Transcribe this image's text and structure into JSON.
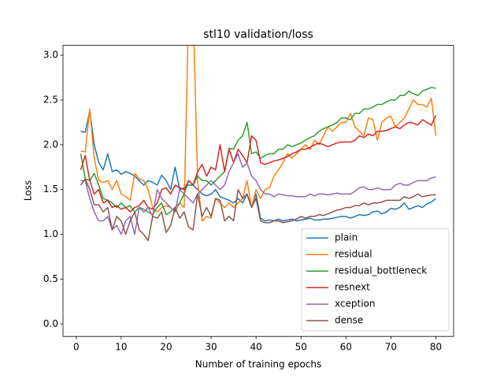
{
  "chart_data": {
    "type": "line",
    "title": "stl10 validation/loss",
    "xlabel": "Number of training epochs",
    "ylabel": "Loss",
    "x": [
      1,
      2,
      3,
      4,
      5,
      6,
      7,
      8,
      9,
      10,
      11,
      12,
      13,
      14,
      15,
      16,
      17,
      18,
      19,
      20,
      21,
      22,
      23,
      24,
      25,
      26,
      27,
      28,
      29,
      30,
      31,
      32,
      33,
      34,
      35,
      36,
      37,
      38,
      39,
      40,
      41,
      42,
      43,
      44,
      45,
      46,
      47,
      48,
      49,
      50,
      51,
      52,
      53,
      54,
      55,
      56,
      57,
      58,
      59,
      60,
      61,
      62,
      63,
      64,
      65,
      66,
      67,
      68,
      69,
      70,
      71,
      72,
      73,
      74,
      75,
      76,
      77,
      78,
      79,
      80
    ],
    "xlim": [
      -2.95,
      83.95
    ],
    "ylim": [
      -0.14,
      3.11
    ],
    "xticks": [
      0,
      10,
      20,
      30,
      40,
      50,
      60,
      70,
      80
    ],
    "yticks": [
      {
        "value": 0,
        "label": "0.0"
      },
      {
        "value": 0.5,
        "label": "0.5"
      },
      {
        "value": 1,
        "label": "1.0"
      },
      {
        "value": 1.5,
        "label": "1.5"
      },
      {
        "value": 2,
        "label": "2.0"
      },
      {
        "value": 2.5,
        "label": "2.5"
      },
      {
        "value": 3,
        "label": "3.0"
      }
    ],
    "legend": "lower right",
    "series": [
      {
        "name": "plain",
        "color": "#1f77b4",
        "values": [
          2.15,
          2.14,
          2.38,
          2.0,
          1.8,
          1.72,
          1.9,
          1.7,
          1.72,
          1.67,
          1.7,
          1.68,
          1.65,
          1.6,
          1.55,
          1.6,
          1.58,
          1.55,
          1.66,
          1.6,
          1.5,
          1.75,
          1.5,
          1.52,
          1.55,
          1.55,
          1.5,
          1.45,
          1.43,
          1.45,
          1.5,
          1.42,
          1.4,
          1.38,
          1.35,
          1.4,
          1.35,
          1.45,
          1.3,
          1.45,
          1.18,
          1.15,
          1.16,
          1.15,
          1.17,
          1.15,
          1.16,
          1.17,
          1.15,
          1.16,
          1.17,
          1.18,
          1.16,
          1.16,
          1.17,
          1.17,
          1.18,
          1.19,
          1.2,
          1.2,
          1.18,
          1.2,
          1.22,
          1.21,
          1.22,
          1.25,
          1.26,
          1.23,
          1.25,
          1.29,
          1.28,
          1.3,
          1.35,
          1.28,
          1.3,
          1.32,
          1.3,
          1.34,
          1.36,
          1.4
        ]
      },
      {
        "name": "residual",
        "color": "#ff7f0e",
        "values": [
          1.93,
          1.92,
          2.4,
          1.85,
          1.6,
          1.58,
          1.6,
          1.5,
          1.6,
          1.45,
          1.42,
          1.38,
          1.68,
          1.62,
          1.6,
          1.5,
          1.3,
          1.25,
          1.3,
          1.32,
          1.3,
          1.25,
          1.35,
          1.3,
          3.5,
          3.5,
          1.6,
          1.15,
          1.2,
          1.18,
          1.4,
          1.35,
          1.3,
          1.35,
          1.3,
          1.35,
          1.4,
          1.6,
          1.3,
          1.5,
          1.4,
          1.5,
          1.52,
          1.65,
          1.72,
          1.8,
          1.9,
          1.85,
          1.9,
          1.95,
          2.0,
          1.95,
          2.05,
          2.0,
          2.1,
          2.2,
          2.15,
          2.2,
          2.25,
          2.25,
          2.35,
          2.2,
          2.15,
          2.1,
          2.3,
          2.28,
          2.05,
          2.25,
          2.3,
          2.32,
          2.2,
          2.25,
          2.3,
          2.4,
          2.5,
          2.45,
          2.45,
          2.42,
          2.52,
          2.1
        ]
      },
      {
        "name": "residual_bottleneck",
        "color": "#2ca02c",
        "values": [
          1.9,
          1.62,
          1.6,
          1.68,
          1.55,
          1.4,
          1.38,
          1.35,
          1.3,
          1.35,
          1.3,
          1.32,
          1.25,
          1.3,
          1.28,
          1.25,
          1.22,
          1.3,
          1.35,
          1.22,
          1.25,
          1.3,
          1.35,
          1.45,
          1.6,
          1.55,
          1.65,
          1.6,
          1.6,
          1.55,
          1.6,
          1.65,
          1.7,
          1.96,
          1.95,
          2.05,
          2.1,
          2.25,
          1.9,
          1.92,
          1.85,
          1.88,
          1.9,
          1.9,
          1.95,
          1.95,
          2.0,
          1.98,
          2.0,
          2.02,
          2.05,
          2.08,
          2.1,
          2.15,
          2.18,
          2.2,
          2.22,
          2.25,
          2.3,
          2.3,
          2.28,
          2.35,
          2.35,
          2.4,
          2.4,
          2.42,
          2.45,
          2.45,
          2.48,
          2.5,
          2.5,
          2.55,
          2.55,
          2.6,
          2.57,
          2.55,
          2.6,
          2.62,
          2.64,
          2.63
        ]
      },
      {
        "name": "resnext",
        "color": "#d62728",
        "values": [
          1.72,
          1.88,
          1.6,
          1.45,
          1.5,
          1.35,
          1.38,
          1.3,
          1.32,
          1.28,
          1.3,
          1.25,
          1.3,
          1.32,
          1.38,
          1.3,
          1.28,
          1.35,
          1.5,
          1.52,
          1.45,
          1.55,
          1.52,
          1.5,
          1.6,
          1.55,
          1.7,
          1.78,
          1.65,
          1.75,
          1.72,
          2.0,
          1.7,
          1.95,
          1.8,
          1.95,
          1.88,
          1.8,
          2.1,
          2.05,
          1.8,
          1.78,
          1.8,
          1.82,
          1.83,
          1.85,
          1.87,
          1.9,
          1.92,
          1.95,
          1.95,
          1.97,
          2.0,
          2.02,
          2.0,
          1.98,
          2.0,
          2.02,
          2.03,
          2.03,
          2.03,
          2.05,
          2.1,
          2.08,
          2.12,
          2.1,
          2.15,
          2.15,
          2.16,
          2.18,
          2.2,
          2.18,
          2.22,
          2.25,
          2.24,
          2.22,
          2.28,
          2.25,
          2.22,
          2.33
        ]
      },
      {
        "name": "xception",
        "color": "#9467bd",
        "values": [
          1.6,
          1.6,
          1.4,
          1.25,
          1.15,
          1.15,
          1.2,
          1.05,
          1.1,
          1.0,
          1.15,
          1.2,
          1.0,
          1.3,
          1.25,
          1.3,
          1.2,
          1.5,
          1.4,
          1.35,
          1.3,
          1.25,
          1.5,
          1.45,
          1.4,
          1.35,
          1.45,
          1.5,
          1.55,
          1.6,
          1.55,
          1.5,
          1.55,
          1.7,
          1.8,
          1.9,
          1.75,
          1.8,
          1.65,
          1.6,
          1.5,
          1.45,
          1.45,
          1.42,
          1.45,
          1.44,
          1.43,
          1.43,
          1.42,
          1.42,
          1.42,
          1.45,
          1.43,
          1.45,
          1.45,
          1.44,
          1.45,
          1.46,
          1.45,
          1.45,
          1.45,
          1.48,
          1.52,
          1.53,
          1.5,
          1.5,
          1.52,
          1.5,
          1.5,
          1.5,
          1.55,
          1.57,
          1.55,
          1.55,
          1.58,
          1.6,
          1.6,
          1.6,
          1.63,
          1.64
        ]
      },
      {
        "name": "dense",
        "color": "#8c564b",
        "values": [
          1.55,
          1.62,
          1.5,
          1.33,
          1.33,
          1.25,
          1.3,
          1.05,
          1.2,
          1.15,
          1.0,
          1.15,
          1.25,
          1.05,
          1.0,
          0.93,
          1.2,
          1.18,
          1.25,
          1.02,
          1.1,
          1.3,
          1.18,
          1.25,
          1.08,
          1.05,
          1.45,
          1.2,
          1.3,
          1.2,
          1.4,
          1.38,
          1.15,
          1.2,
          1.15,
          1.5,
          1.4,
          1.45,
          1.3,
          1.4,
          1.15,
          1.13,
          1.13,
          1.15,
          1.15,
          1.13,
          1.14,
          1.15,
          1.17,
          1.2,
          1.18,
          1.2,
          1.2,
          1.22,
          1.21,
          1.23,
          1.25,
          1.27,
          1.28,
          1.3,
          1.3,
          1.32,
          1.32,
          1.35,
          1.33,
          1.35,
          1.35,
          1.36,
          1.38,
          1.38,
          1.38,
          1.38,
          1.42,
          1.4,
          1.42,
          1.45,
          1.42,
          1.43,
          1.44,
          1.44
        ]
      }
    ]
  }
}
